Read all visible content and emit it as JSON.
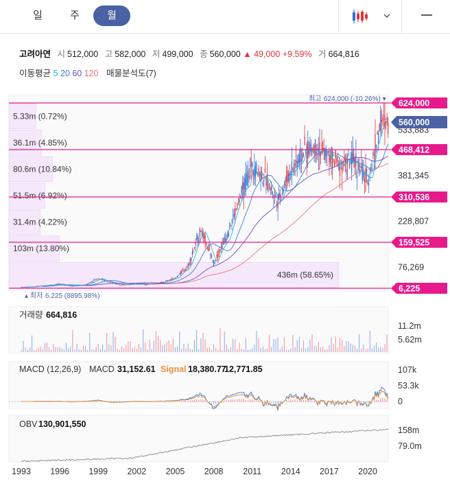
{
  "tabs": [
    {
      "label": "일"
    },
    {
      "label": "주"
    },
    {
      "label": "월",
      "active": true
    }
  ],
  "header": {
    "menu_icon": "hamburger-icon",
    "chart_type_icon": "candlestick-icon",
    "dropdown_icon": "chevron-down-icon"
  },
  "stock": {
    "name": "고려아연",
    "open_label": "시",
    "open": "512,000",
    "high_label": "고",
    "high": "582,000",
    "low_label": "저",
    "low": "499,000",
    "close_label": "종",
    "close": "560,000",
    "change": "▲ 49,000",
    "change_pct": "+9.59%",
    "volume_label": "거",
    "volume": "664,816"
  },
  "indicators": {
    "ma_label": "이동평균",
    "ma_periods": [
      "5",
      "20",
      "60",
      "120"
    ],
    "ma_colors": [
      "#26b5d8",
      "#3a7bd5",
      "#6a4bc4",
      "#f07070"
    ],
    "volume_profile_label": "매물분석도(7)"
  },
  "colors": {
    "up": "#e0333c",
    "down": "#2c6fd6",
    "accent": "#e8198b",
    "current": "#4a62a3",
    "profile": "#f6e8fb"
  },
  "chart_data": [
    {
      "type": "candlestick",
      "name": "price",
      "x_axis_ticks": [
        "1993",
        "1996",
        "1999",
        "2002",
        "2005",
        "2008",
        "2011",
        "2014",
        "2017",
        "2020"
      ],
      "y_ticks": [
        76269,
        228807,
        381345,
        533883
      ],
      "ylim": [
        6225,
        624000
      ],
      "max_label": "최고",
      "max_value": "624,000 (-10.26%)",
      "min_label": "최저",
      "min_value": "6,225 (8895.98%)",
      "price_lines": [
        {
          "label": "624,000",
          "value": 624000
        },
        {
          "label": "468,412",
          "value": 468412
        },
        {
          "label": "310,536",
          "value": 310536
        },
        {
          "label": "159,525",
          "value": 159525
        },
        {
          "label": "6,225",
          "value": 6225
        }
      ],
      "current_price": {
        "label": "560,000",
        "value": 560000
      },
      "series_points": {
        "years": [
          1993,
          1994,
          1995,
          1996,
          1997,
          1998,
          1999,
          2000,
          2001,
          2002,
          2003,
          2004,
          2005,
          2006,
          2007,
          2008,
          2009,
          2010,
          2011,
          2012,
          2013,
          2014,
          2015,
          2016,
          2017,
          2018,
          2019,
          2020,
          2021
        ],
        "close": [
          10000,
          12000,
          16000,
          20000,
          14000,
          18000,
          40000,
          25000,
          18000,
          22000,
          20000,
          25000,
          40000,
          80000,
          200000,
          90000,
          180000,
          300000,
          420000,
          370000,
          300000,
          400000,
          460000,
          480000,
          440000,
          420000,
          430000,
          360000,
          560000
        ]
      },
      "volume_profile": [
        {
          "label": "5.33m (0.72%)",
          "pct": 0.72
        },
        {
          "label": "36.1m (4.85%)",
          "pct": 4.85
        },
        {
          "label": "80.6m (10.84%)",
          "pct": 10.84
        },
        {
          "label": "51.5m (6.92%)",
          "pct": 6.92
        },
        {
          "label": "31.4m (4.22%)",
          "pct": 4.22
        },
        {
          "label": "103m (13.80%)",
          "pct": 13.8
        },
        {
          "label": "436m (58.65%)",
          "pct": 58.65
        }
      ]
    },
    {
      "type": "bar",
      "name": "volume",
      "title": "거래량",
      "value": "664,816",
      "y_ticks": [
        "11.2m",
        "5.62m"
      ]
    },
    {
      "type": "line",
      "name": "macd",
      "title": "MACD (12,26,9)",
      "macd_label": "MACD",
      "macd_value": "31,152.61",
      "signal_label": "Signal",
      "signal_value": "18,380.77",
      "hist_value": "12,771.85",
      "y_ticks": [
        "107k",
        "53.3k",
        "0"
      ]
    },
    {
      "type": "line",
      "name": "obv",
      "title": "OBV",
      "value": "130,901,550",
      "y_ticks": [
        "158m",
        "79.0m"
      ]
    }
  ]
}
